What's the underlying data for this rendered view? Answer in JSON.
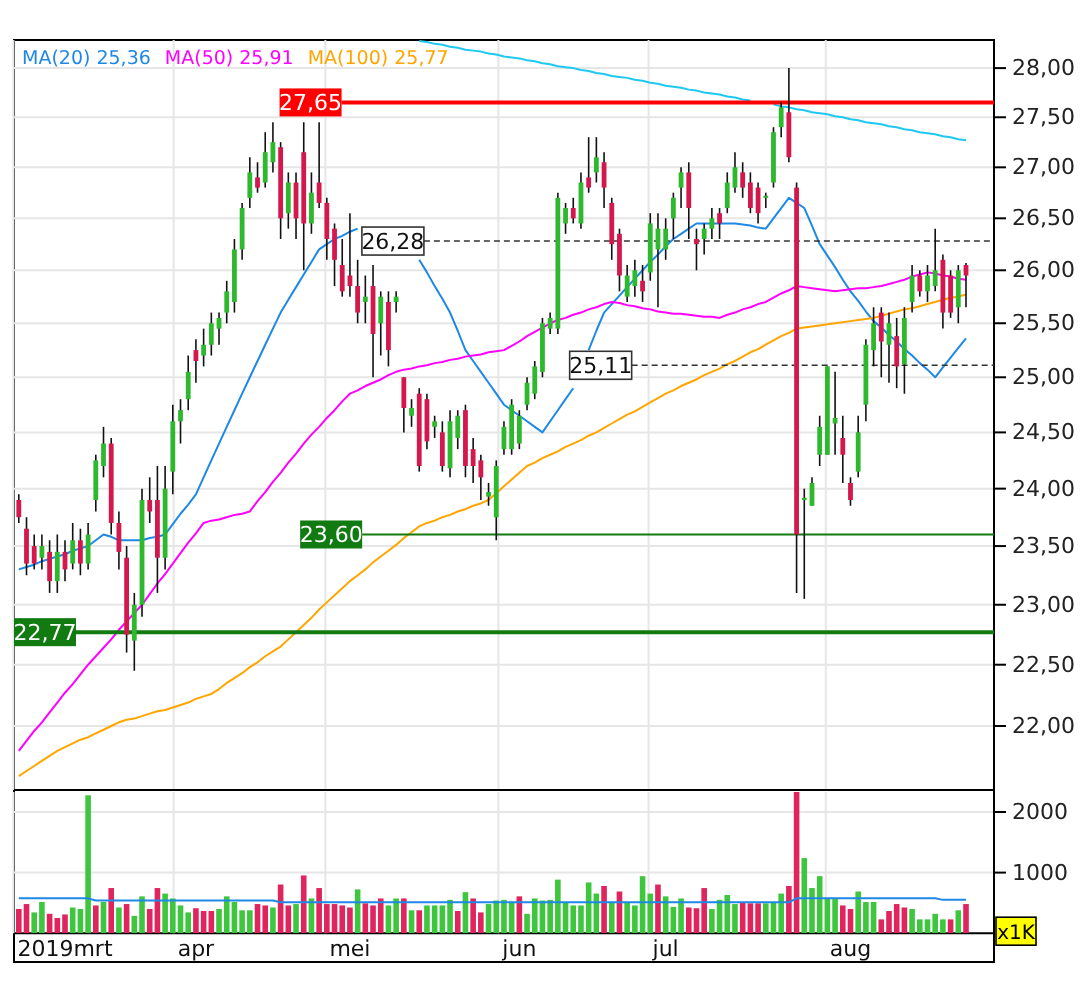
{
  "chart_data": [
    {
      "type": "candlestick",
      "tick_labels": "y",
      "log": true,
      "grid": true,
      "legend": "top left",
      "categories": [
        null,
        null,
        null,
        null,
        null,
        null,
        null,
        null,
        null,
        null,
        null,
        null,
        null,
        null,
        null,
        null,
        null,
        null,
        null,
        null,
        null,
        null,
        null,
        null,
        null,
        null,
        null,
        null,
        null,
        null,
        null,
        null,
        null,
        null,
        null,
        null,
        null,
        null,
        null,
        null,
        null,
        null,
        null,
        null,
        null,
        null,
        null,
        null,
        null,
        null,
        null,
        null,
        null,
        null,
        null,
        null,
        null,
        null,
        null,
        null,
        null,
        null,
        null,
        null,
        null,
        null,
        null,
        null,
        null,
        null,
        null,
        null,
        null,
        null,
        null,
        null,
        null,
        null,
        null,
        null,
        null,
        null,
        null,
        null,
        null,
        null,
        null,
        null,
        null,
        null,
        null,
        null,
        null,
        null,
        null,
        null,
        null,
        null,
        null,
        null,
        null,
        null,
        null,
        null,
        null,
        null,
        null,
        null,
        null,
        null,
        null,
        null,
        null,
        null,
        null,
        null,
        null,
        null,
        null,
        null,
        null,
        null,
        null,
        null
      ],
      "ylim": [
        21.49,
        28.29
      ],
      "yticks": [
        {
          "value": 22,
          "label": "22,00"
        },
        {
          "value": 22.5,
          "label": "22,50"
        },
        {
          "value": 23,
          "label": "23,00"
        },
        {
          "value": 23.5,
          "label": "23,50"
        },
        {
          "value": 24,
          "label": "24,00"
        },
        {
          "value": 24.5,
          "label": "24,50"
        },
        {
          "value": 25,
          "label": "25,00"
        },
        {
          "value": 25.5,
          "label": "25,50"
        },
        {
          "value": 26,
          "label": "26,00"
        },
        {
          "value": 26.5,
          "label": "26,50"
        },
        {
          "value": 27,
          "label": "27,00"
        },
        {
          "value": 27.5,
          "label": "27,50"
        },
        {
          "value": 28,
          "label": "28,00"
        }
      ],
      "ohlc": [
        [
          23.9,
          23.95,
          23.7,
          23.75
        ],
        [
          23.65,
          23.75,
          23.25,
          23.35
        ],
        [
          23.5,
          23.6,
          23.3,
          23.35
        ],
        [
          23.4,
          23.6,
          23.3,
          23.5
        ],
        [
          23.45,
          23.55,
          23.1,
          23.2
        ],
        [
          23.2,
          23.6,
          23.1,
          23.45
        ],
        [
          23.45,
          23.55,
          23.2,
          23.3
        ],
        [
          23.35,
          23.7,
          23.3,
          23.55
        ],
        [
          23.55,
          23.65,
          23.25,
          23.35
        ],
        [
          23.35,
          23.7,
          23.3,
          23.6
        ],
        [
          23.9,
          24.3,
          23.8,
          24.25
        ],
        [
          24.2,
          24.55,
          24.1,
          24.4
        ],
        [
          24.4,
          24.45,
          23.6,
          23.7
        ],
        [
          23.7,
          23.8,
          23.3,
          23.45
        ],
        [
          23.4,
          23.5,
          22.6,
          22.75
        ],
        [
          22.7,
          23.1,
          22.45,
          23.0
        ],
        [
          23.0,
          24.0,
          22.9,
          23.9
        ],
        [
          23.9,
          24.1,
          23.7,
          23.8
        ],
        [
          23.9,
          24.2,
          23.1,
          23.4
        ],
        [
          23.4,
          24.2,
          23.3,
          24.0
        ],
        [
          24.15,
          24.75,
          23.95,
          24.6
        ],
        [
          24.6,
          24.8,
          24.4,
          24.7
        ],
        [
          24.8,
          25.2,
          24.7,
          25.05
        ],
        [
          25.25,
          25.35,
          24.95,
          25.15
        ],
        [
          25.2,
          25.45,
          25.1,
          25.3
        ],
        [
          25.3,
          25.6,
          25.2,
          25.5
        ],
        [
          25.45,
          25.6,
          25.3,
          25.55
        ],
        [
          25.6,
          25.9,
          25.5,
          25.8
        ],
        [
          25.7,
          26.3,
          25.6,
          26.2
        ],
        [
          26.2,
          26.65,
          26.1,
          26.6
        ],
        [
          26.7,
          27.1,
          26.6,
          26.95
        ],
        [
          26.9,
          27.05,
          26.75,
          26.8
        ],
        [
          26.85,
          27.35,
          26.8,
          27.15
        ],
        [
          27.05,
          27.45,
          26.95,
          27.25
        ],
        [
          27.2,
          27.25,
          26.3,
          26.5
        ],
        [
          26.55,
          26.95,
          26.4,
          26.85
        ],
        [
          26.85,
          26.95,
          26.3,
          26.5
        ],
        [
          27.15,
          27.45,
          26.0,
          26.45
        ],
        [
          26.45,
          26.95,
          26.35,
          26.75
        ],
        [
          26.85,
          27.45,
          26.6,
          26.65
        ],
        [
          26.65,
          26.7,
          26.1,
          26.3
        ],
        [
          26.4,
          26.45,
          25.85,
          26.1
        ],
        [
          26.05,
          26.3,
          25.75,
          25.8
        ],
        [
          25.95,
          26.55,
          25.75,
          25.85
        ],
        [
          25.85,
          26.1,
          25.5,
          25.6
        ],
        [
          25.7,
          25.95,
          25.5,
          25.75
        ],
        [
          25.85,
          26.05,
          25.0,
          25.4
        ],
        [
          25.5,
          25.8,
          25.2,
          25.75
        ],
        [
          25.7,
          25.8,
          25.1,
          25.25
        ],
        [
          25.7,
          25.8,
          25.6,
          25.75
        ],
        [
          25.0,
          25.0,
          24.5,
          24.72
        ],
        [
          24.65,
          24.8,
          24.55,
          24.72
        ],
        [
          24.85,
          24.9,
          24.15,
          24.2
        ],
        [
          24.8,
          24.85,
          24.35,
          24.42
        ],
        [
          24.55,
          24.65,
          24.45,
          24.6
        ],
        [
          24.5,
          24.6,
          24.15,
          24.2
        ],
        [
          24.18,
          24.7,
          24.1,
          24.6
        ],
        [
          24.45,
          24.7,
          24.35,
          24.65
        ],
        [
          24.7,
          24.75,
          24.1,
          24.2
        ],
        [
          24.35,
          24.45,
          24.05,
          24.2
        ],
        [
          24.25,
          24.3,
          23.9,
          24.1
        ],
        [
          23.93,
          24.05,
          23.85,
          23.97
        ],
        [
          23.75,
          24.25,
          23.55,
          24.2
        ],
        [
          24.35,
          24.6,
          24.3,
          24.55
        ],
        [
          24.35,
          24.8,
          24.3,
          24.75
        ],
        [
          24.4,
          24.7,
          24.35,
          24.65
        ],
        [
          24.75,
          25.0,
          24.7,
          24.95
        ],
        [
          24.85,
          25.15,
          24.8,
          25.1
        ],
        [
          25.05,
          25.55,
          25.0,
          25.5
        ],
        [
          25.45,
          25.6,
          25.4,
          25.55
        ],
        [
          25.45,
          26.75,
          25.4,
          26.7
        ],
        [
          26.45,
          26.65,
          26.35,
          26.6
        ],
        [
          26.6,
          26.7,
          26.45,
          26.5
        ],
        [
          26.45,
          26.95,
          26.4,
          26.85
        ],
        [
          26.9,
          27.3,
          26.75,
          26.8
        ],
        [
          26.95,
          27.3,
          26.85,
          27.1
        ],
        [
          27.05,
          27.15,
          26.6,
          26.8
        ],
        [
          26.65,
          26.7,
          26.1,
          26.25
        ],
        [
          26.35,
          26.4,
          25.8,
          25.95
        ],
        [
          25.75,
          26.05,
          25.7,
          25.95
        ],
        [
          25.85,
          26.1,
          25.75,
          26.0
        ],
        [
          25.9,
          26.05,
          25.7,
          25.8
        ],
        [
          25.98,
          26.55,
          25.9,
          26.45
        ],
        [
          26.2,
          26.55,
          25.65,
          26.4
        ],
        [
          26.2,
          26.5,
          26.1,
          26.4
        ],
        [
          26.5,
          26.75,
          26.3,
          26.7
        ],
        [
          26.8,
          27.0,
          26.6,
          26.95
        ],
        [
          26.95,
          27.05,
          26.3,
          26.6
        ],
        [
          26.3,
          26.4,
          26.0,
          26.25
        ],
        [
          26.3,
          26.45,
          26.15,
          26.4
        ],
        [
          26.4,
          26.6,
          26.3,
          26.5
        ],
        [
          26.55,
          26.6,
          26.3,
          26.45
        ],
        [
          26.6,
          26.95,
          26.55,
          26.85
        ],
        [
          26.8,
          27.15,
          26.75,
          27.0
        ],
        [
          26.95,
          27.05,
          26.7,
          26.8
        ],
        [
          26.85,
          26.95,
          26.55,
          26.6
        ],
        [
          26.8,
          26.85,
          26.45,
          26.55
        ],
        [
          26.7,
          26.75,
          26.6,
          26.72
        ],
        [
          26.85,
          27.4,
          26.8,
          27.35
        ],
        [
          27.4,
          27.65,
          27.3,
          27.6
        ],
        [
          27.55,
          28.0,
          27.05,
          27.1
        ],
        [
          26.8,
          26.85,
          23.1,
          23.6
        ],
        [
          23.9,
          24.0,
          23.05,
          23.92
        ],
        [
          23.85,
          24.1,
          23.85,
          24.05
        ],
        [
          24.3,
          24.65,
          24.2,
          24.55
        ],
        [
          24.3,
          25.1,
          24.3,
          25.1
        ],
        [
          24.58,
          25.05,
          24.3,
          24.63
        ],
        [
          24.45,
          24.65,
          24.05,
          24.3
        ],
        [
          24.05,
          24.1,
          23.85,
          23.9
        ],
        [
          24.15,
          24.65,
          24.1,
          24.5
        ],
        [
          24.75,
          25.35,
          24.6,
          25.3
        ],
        [
          25.25,
          25.65,
          25.1,
          25.5
        ],
        [
          25.6,
          25.65,
          25.0,
          25.33
        ],
        [
          25.3,
          25.6,
          24.95,
          25.5
        ],
        [
          25.38,
          25.55,
          24.9,
          25.1
        ],
        [
          25.12,
          25.65,
          24.85,
          25.55
        ],
        [
          25.7,
          26.05,
          25.6,
          25.95
        ],
        [
          25.95,
          26.0,
          25.75,
          25.8
        ],
        [
          25.8,
          26.05,
          25.7,
          25.95
        ],
        [
          25.85,
          26.4,
          25.8,
          26.0
        ],
        [
          26.1,
          26.15,
          25.45,
          25.6
        ],
        [
          25.95,
          26.0,
          25.55,
          25.6
        ],
        [
          25.65,
          26.05,
          25.5,
          26.0
        ],
        [
          26.05,
          26.07,
          25.65,
          25.95
        ]
      ],
      "colors": [
        "#d4174d",
        "#d4174d",
        "#d4174d",
        "#2db82d",
        "#d4174d",
        "#2db82d",
        "#d4174d",
        "#2db82d",
        "#d4174d",
        "#2db82d",
        "#2db82d",
        "#2db82d",
        "#d4174d",
        "#d4174d",
        "#d4174d",
        "#2db82d",
        "#2db82d",
        "#d4174d",
        "#d4174d",
        "#2db82d",
        "#2db82d",
        "#2db82d",
        "#2db82d",
        "#d4174d",
        "#2db82d",
        "#2db82d",
        "#2db82d",
        "#2db82d",
        "#2db82d",
        "#2db82d",
        "#2db82d",
        "#d4174d",
        "#2db82d",
        "#2db82d",
        "#d4174d",
        "#2db82d",
        "#d4174d",
        "#d4174d",
        "#2db82d",
        "#d4174d",
        "#d4174d",
        "#d4174d",
        "#d4174d",
        "#d4174d",
        "#d4174d",
        "#2db82d",
        "#d4174d",
        "#2db82d",
        "#d4174d",
        "#2db82d",
        "#d4174d",
        "#2db82d",
        "#d4174d",
        "#d4174d",
        "#2db82d",
        "#d4174d",
        "#2db82d",
        "#2db82d",
        "#d4174d",
        "#d4174d",
        "#d4174d",
        "#2db82d",
        "#2db82d",
        "#2db82d",
        "#2db82d",
        "#2db82d",
        "#2db82d",
        "#2db82d",
        "#2db82d",
        "#2db82d",
        "#2db82d",
        "#2db82d",
        "#d4174d",
        "#2db82d",
        "#d4174d",
        "#2db82d",
        "#d4174d",
        "#d4174d",
        "#d4174d",
        "#2db82d",
        "#2db82d",
        "#d4174d",
        "#2db82d",
        "#2db82d",
        "#2db82d",
        "#2db82d",
        "#2db82d",
        "#d4174d",
        "#d4174d",
        "#2db82d",
        "#2db82d",
        "#d4174d",
        "#2db82d",
        "#2db82d",
        "#d4174d",
        "#d4174d",
        "#d4174d",
        "#2db82d",
        "#2db82d",
        "#2db82d",
        "#d4174d",
        "#d4174d",
        "#2db82d",
        "#2db82d",
        "#2db82d",
        "#2db82d",
        "#2db82d",
        "#d4174d",
        "#d4174d",
        "#2db82d",
        "#2db82d",
        "#2db82d",
        "#d4174d",
        "#2db82d",
        "#d4174d",
        "#2db82d",
        "#2db82d",
        "#d4174d",
        "#2db82d",
        "#2db82d",
        "#d4174d",
        "#d4174d",
        "#2db82d",
        "#d4174d"
      ],
      "series": [
        {
          "name": "MA(20) 25,36",
          "type": "line",
          "color": "#1e88e5",
          "values": [
            23.3,
            23.32,
            23.34,
            23.37,
            23.39,
            23.41,
            23.43,
            23.46,
            23.48,
            23.5,
            23.55,
            23.6,
            23.58,
            23.55,
            23.55,
            23.55,
            23.55,
            23.57,
            23.58,
            23.6,
            23.69,
            23.78,
            23.86,
            23.95,
            24.1,
            24.25,
            24.4,
            24.55,
            24.7,
            24.85,
            25.0,
            25.15,
            25.3,
            25.45,
            25.6,
            25.72,
            25.84,
            25.96,
            26.08,
            26.2,
            26.25,
            26.3,
            26.33,
            26.37,
            26.4,
            null,
            null,
            null,
            null,
            null,
            null,
            null,
            26.1,
            25.98,
            25.85,
            25.73,
            25.6,
            25.43,
            25.25,
            25.15,
            25.05,
            24.95,
            24.85,
            24.75,
            24.7,
            24.65,
            24.6,
            24.55,
            24.5,
            24.6,
            24.7,
            24.8,
            24.9,
            null,
            25.25,
            25.43,
            25.6,
            25.68,
            25.76,
            25.84,
            25.92,
            26.0,
            26.08,
            26.15,
            26.23,
            26.3,
            26.35,
            26.4,
            26.45,
            26.45,
            26.45,
            26.45,
            26.45,
            26.45,
            26.44,
            26.43,
            26.41,
            26.4,
            26.5,
            26.6,
            26.7,
            26.65,
            26.6,
            26.43,
            26.25,
            26.14,
            26.03,
            25.91,
            25.8,
            25.71,
            25.61,
            25.52,
            25.46,
            25.39,
            25.33,
            25.26,
            25.2,
            25.13,
            25.07,
            25.0,
            25.09,
            25.18,
            25.27,
            25.36
          ]
        },
        {
          "name": "MA(50) 25,91",
          "type": "line",
          "color": "#ff00ff",
          "values": [
            21.8,
            21.88,
            21.96,
            22.03,
            22.11,
            22.19,
            22.27,
            22.34,
            22.42,
            22.5,
            22.57,
            22.64,
            22.71,
            22.79,
            22.86,
            22.93,
            23.0,
            23.09,
            23.18,
            23.26,
            23.35,
            23.44,
            23.53,
            23.61,
            23.7,
            23.72,
            23.73,
            23.75,
            23.77,
            23.78,
            23.8,
            23.89,
            23.97,
            24.06,
            24.14,
            24.23,
            24.31,
            24.4,
            24.48,
            24.55,
            24.63,
            24.7,
            24.78,
            24.85,
            24.88,
            24.92,
            24.95,
            24.98,
            25.02,
            25.05,
            25.07,
            25.08,
            25.1,
            25.11,
            25.13,
            25.14,
            25.16,
            25.17,
            25.19,
            25.2,
            25.21,
            25.23,
            25.24,
            25.25,
            25.29,
            25.33,
            25.38,
            25.42,
            25.46,
            25.5,
            25.53,
            25.55,
            25.58,
            25.6,
            25.63,
            25.65,
            25.68,
            25.7,
            25.69,
            25.67,
            25.66,
            25.64,
            25.63,
            25.61,
            25.6,
            25.59,
            25.59,
            25.58,
            25.57,
            25.56,
            25.56,
            25.55,
            25.58,
            25.6,
            25.63,
            25.65,
            25.68,
            25.7,
            25.74,
            25.78,
            25.81,
            25.85,
            25.84,
            25.83,
            25.82,
            25.81,
            25.8,
            25.81,
            25.82,
            25.83,
            25.83,
            25.84,
            25.85,
            25.87,
            25.89,
            25.91,
            25.94,
            25.96,
            25.98,
            25.97,
            25.95,
            25.94,
            25.92,
            25.91
          ]
        },
        {
          "name": "MA(100) 25,77",
          "type": "line",
          "color": "#ffa500",
          "values": [
            21.6,
            21.64,
            21.68,
            21.72,
            21.76,
            21.8,
            21.83,
            21.86,
            21.89,
            21.91,
            21.94,
            21.97,
            22.0,
            22.03,
            22.05,
            22.06,
            22.08,
            22.1,
            22.12,
            22.13,
            22.15,
            22.17,
            22.19,
            22.22,
            22.24,
            22.26,
            22.3,
            22.35,
            22.39,
            22.43,
            22.48,
            22.52,
            22.57,
            22.61,
            22.65,
            22.71,
            22.77,
            22.83,
            22.89,
            22.96,
            23.02,
            23.08,
            23.14,
            23.2,
            23.25,
            23.3,
            23.36,
            23.41,
            23.46,
            23.51,
            23.57,
            23.62,
            23.67,
            23.7,
            23.72,
            23.75,
            23.77,
            23.8,
            23.82,
            23.85,
            23.87,
            23.9,
            23.96,
            24.02,
            24.08,
            24.14,
            24.2,
            24.23,
            24.27,
            24.3,
            24.33,
            24.37,
            24.4,
            24.43,
            24.47,
            24.5,
            24.54,
            24.58,
            24.62,
            24.66,
            24.69,
            24.73,
            24.77,
            24.81,
            24.85,
            24.88,
            24.92,
            24.95,
            24.98,
            25.02,
            25.05,
            25.08,
            25.12,
            25.15,
            25.19,
            25.23,
            25.26,
            25.3,
            25.34,
            25.38,
            25.41,
            25.45,
            25.46,
            25.47,
            25.48,
            25.49,
            25.5,
            25.51,
            25.52,
            25.53,
            25.54,
            25.55,
            25.57,
            25.59,
            25.61,
            25.63,
            25.64,
            25.66,
            25.68,
            25.7,
            25.72,
            25.74,
            25.75,
            25.77
          ]
        },
        {
          "type": "line",
          "color": "#1ec8f0",
          "values": [
            null,
            null,
            null,
            null,
            null,
            null,
            null,
            null,
            null,
            null,
            null,
            null,
            null,
            null,
            null,
            null,
            null,
            null,
            null,
            null,
            null,
            null,
            null,
            null,
            null,
            null,
            null,
            null,
            null,
            null,
            null,
            null,
            null,
            null,
            null,
            null,
            null,
            null,
            null,
            null,
            null,
            null,
            null,
            null,
            null,
            null,
            null,
            null,
            null,
            null,
            null,
            null,
            28.28,
            28.27,
            28.25,
            28.24,
            28.22,
            28.21,
            28.19,
            28.18,
            28.17,
            28.15,
            28.14,
            28.12,
            28.11,
            28.1,
            28.08,
            28.07,
            28.05,
            28.04,
            28.02,
            28.01,
            28.0,
            27.98,
            27.97,
            27.95,
            27.94,
            27.92,
            27.91,
            27.9,
            27.88,
            27.87,
            27.85,
            27.84,
            27.82,
            27.81,
            27.8,
            27.78,
            27.77,
            27.75,
            27.74,
            27.73,
            27.71,
            27.7,
            27.68,
            27.67,
            null,
            null,
            27.63,
            27.61,
            27.6,
            27.58,
            27.57,
            27.55,
            27.54,
            27.53,
            27.51,
            27.5,
            27.48,
            27.47,
            27.45,
            27.44,
            27.43,
            27.41,
            27.4,
            27.38,
            27.37,
            27.35,
            27.34,
            27.33,
            27.31,
            27.3,
            27.28,
            27.27
          ]
        }
      ],
      "ref_lines": [
        {
          "axis": "y",
          "value": 27.65,
          "label": "27,65",
          "color": "#ff0000",
          "line_style": "solid"
        },
        {
          "axis": "y",
          "value": 26.28,
          "label": "26,28",
          "color": "#333333",
          "line_style": "dashed"
        },
        {
          "axis": "y",
          "value": 25.11,
          "label": "25,11",
          "color": "#333333",
          "line_style": "dashed"
        },
        {
          "axis": "y",
          "value": 23.6,
          "label": "23,60",
          "color": "#117a11",
          "line_style": "solid"
        },
        {
          "axis": "y",
          "value": 22.77,
          "label": "22,77",
          "color": "#117a11",
          "line_style": "solid"
        }
      ]
    },
    {
      "type": "bar",
      "grid": true,
      "ylabel": "x1K",
      "categories": [
        null,
        null,
        null,
        null,
        null,
        null,
        "2019mrt",
        null,
        null,
        null,
        null,
        null,
        null,
        null,
        null,
        null,
        null,
        null,
        null,
        null,
        null,
        null,
        null,
        "apr",
        null,
        null,
        null,
        null,
        null,
        null,
        null,
        null,
        null,
        null,
        null,
        null,
        null,
        null,
        null,
        null,
        null,
        null,
        null,
        "mei",
        null,
        null,
        null,
        null,
        null,
        null,
        null,
        null,
        null,
        null,
        null,
        null,
        null,
        null,
        null,
        null,
        null,
        null,
        null,
        null,
        null,
        "jun",
        null,
        null,
        null,
        null,
        null,
        null,
        null,
        null,
        null,
        null,
        null,
        null,
        null,
        null,
        null,
        null,
        null,
        null,
        "jul",
        null,
        null,
        null,
        null,
        null,
        null,
        null,
        null,
        null,
        null,
        null,
        null,
        null,
        null,
        null,
        null,
        null,
        null,
        null,
        null,
        null,
        null,
        null,
        "aug",
        null,
        null,
        null,
        null,
        null,
        null,
        null,
        null,
        null,
        null,
        null,
        null,
        null,
        null,
        null
      ],
      "ylim": [
        0,
        2330
      ],
      "yticks": [
        1000,
        2000
      ],
      "series": [
        {
          "type": "bar",
          "values": [
            400,
            481,
            343,
            515,
            320,
            251,
            309,
            424,
            400,
            2275,
            458,
            515,
            745,
            424,
            481,
            286,
            608,
            400,
            745,
            654,
            573,
            458,
            343,
            412,
            366,
            366,
            400,
            608,
            515,
            378,
            378,
            481,
            458,
            424,
            803,
            458,
            481,
            953,
            573,
            745,
            481,
            481,
            458,
            424,
            723,
            493,
            458,
            573,
            458,
            573,
            573,
            378,
            378,
            458,
            458,
            458,
            550,
            366,
            677,
            573,
            343,
            481,
            539,
            550,
            515,
            608,
            320,
            573,
            539,
            550,
            884,
            515,
            458,
            458,
            838,
            654,
            780,
            515,
            688,
            515,
            458,
            941,
            654,
            803,
            608,
            435,
            573,
            424,
            412,
            745,
            400,
            550,
            631,
            481,
            515,
            493,
            493,
            493,
            515,
            654,
            780,
            2330,
            1240,
            745,
            941,
            573,
            573,
            458,
            400,
            688,
            515,
            515,
            228,
            366,
            481,
            424,
            400,
            228,
            228,
            320,
            228,
            228,
            378,
            481
          ],
          "colors": [
            "#e0245e",
            "#e0245e",
            "#3ec63e",
            "#3ec63e",
            "#e0245e",
            "#e0245e",
            "#e0245e",
            "#3ec63e",
            "#3ec63e",
            "#3ec63e",
            "#e0245e",
            "#3ec63e",
            "#e0245e",
            "#3ec63e",
            "#e0245e",
            "#3ec63e",
            "#3ec63e",
            "#e0245e",
            "#e0245e",
            "#3ec63e",
            "#3ec63e",
            "#3ec63e",
            "#3ec63e",
            "#e0245e",
            "#e0245e",
            "#e0245e",
            "#3ec63e",
            "#3ec63e",
            "#3ec63e",
            "#3ec63e",
            "#3ec63e",
            "#e0245e",
            "#e0245e",
            "#3ec63e",
            "#e0245e",
            "#e0245e",
            "#3ec63e",
            "#e0245e",
            "#3ec63e",
            "#e0245e",
            "#e0245e",
            "#e0245e",
            "#e0245e",
            "#e0245e",
            "#3ec63e",
            "#e0245e",
            "#e0245e",
            "#e0245e",
            "#3ec63e",
            "#3ec63e",
            "#e0245e",
            "#3ec63e",
            "#e0245e",
            "#3ec63e",
            "#3ec63e",
            "#3ec63e",
            "#3ec63e",
            "#e0245e",
            "#3ec63e",
            "#e0245e",
            "#e0245e",
            "#3ec63e",
            "#3ec63e",
            "#3ec63e",
            "#3ec63e",
            "#e0245e",
            "#3ec63e",
            "#3ec63e",
            "#3ec63e",
            "#3ec63e",
            "#3ec63e",
            "#3ec63e",
            "#3ec63e",
            "#3ec63e",
            "#3ec63e",
            "#3ec63e",
            "#e0245e",
            "#3ec63e",
            "#e0245e",
            "#3ec63e",
            "#3ec63e",
            "#3ec63e",
            "#3ec63e",
            "#e0245e",
            "#3ec63e",
            "#3ec63e",
            "#3ec63e",
            "#e0245e",
            "#e0245e",
            "#e0245e",
            "#3ec63e",
            "#3ec63e",
            "#3ec63e",
            "#3ec63e",
            "#e0245e",
            "#e0245e",
            "#e0245e",
            "#3ec63e",
            "#3ec63e",
            "#3ec63e",
            "#e0245e",
            "#e0245e",
            "#3ec63e",
            "#3ec63e",
            "#3ec63e",
            "#3ec63e",
            "#3ec63e",
            "#e0245e",
            "#e0245e",
            "#3ec63e",
            "#3ec63e",
            "#3ec63e",
            "#e0245e",
            "#e0245e",
            "#e0245e",
            "#e0245e",
            "#3ec63e",
            "#3ec63e",
            "#3ec63e",
            "#3ec63e",
            "#3ec63e",
            "#e0245e",
            "#3ec63e",
            "#e0245e"
          ]
        },
        {
          "type": "line",
          "color": "#1e88e5",
          "values": [
            575,
            575,
            575,
            575,
            575,
            575,
            575,
            575,
            575,
            575,
            540,
            540,
            540,
            540,
            540,
            540,
            540,
            540,
            540,
            540,
            540,
            540,
            540,
            540,
            540,
            540,
            540,
            540,
            540,
            540,
            540,
            540,
            540,
            540,
            510,
            510,
            510,
            510,
            510,
            510,
            510,
            510,
            510,
            510,
            510,
            510,
            510,
            510,
            510,
            510,
            510,
            510,
            510,
            510,
            510,
            510,
            510,
            510,
            510,
            510,
            510,
            510,
            510,
            510,
            510,
            510,
            510,
            510,
            510,
            510,
            510,
            510,
            510,
            510,
            510,
            510,
            510,
            510,
            510,
            510,
            510,
            510,
            510,
            510,
            510,
            510,
            510,
            510,
            510,
            510,
            510,
            510,
            510,
            510,
            510,
            510,
            510,
            510,
            510,
            510,
            510,
            575,
            575,
            575,
            575,
            575,
            575,
            575,
            575,
            575,
            575,
            575,
            575,
            575,
            575,
            575,
            575,
            575,
            575,
            575,
            550,
            550,
            550,
            550
          ]
        }
      ]
    }
  ]
}
